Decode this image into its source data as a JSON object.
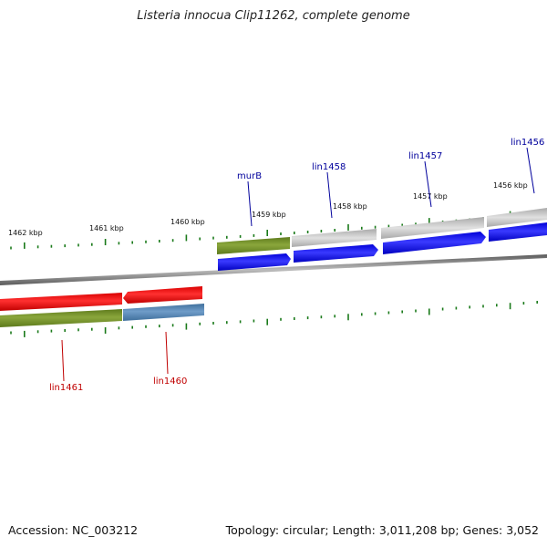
{
  "title": "Listeria innocua Clip11262, complete genome",
  "footer": {
    "accession": "Accession: NC_003212",
    "summary": "Topology: circular; Length: 3,011,208 bp; Genes: 3,052"
  },
  "kbp_labels": [
    "1462 kbp",
    "1461 kbp",
    "1460 kbp",
    "1459 kbp",
    "1458 kbp",
    "1457 kbp",
    "1456 kbp"
  ],
  "gene_labels_top": [
    "murB",
    "lin1458",
    "lin1457",
    "lin1456"
  ],
  "gene_labels_bottom": [
    "lin1461",
    "lin1460"
  ],
  "colors": {
    "top_label": "#00009c",
    "bottom_label": "#c00000",
    "forward_cds": "#0000ee",
    "reverse_cds": "#ee0000",
    "tick": "#1a7a1a",
    "backbone": "#7a7a7a"
  }
}
